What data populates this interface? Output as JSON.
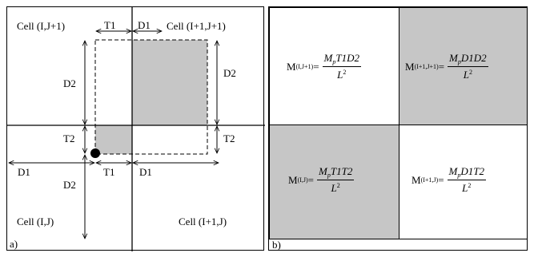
{
  "panel_a": {
    "tag": "a)",
    "cells": {
      "top_left": "Cell (I,J+1)",
      "top_right": "Cell (I+1,J+1)",
      "bottom_left": "Cell (I,J)",
      "bottom_right": "Cell (I+1,J)"
    },
    "dims": {
      "t1_top": "T1",
      "d1_top": "D1",
      "d2_left": "D2",
      "d2_right": "D2",
      "t2_left": "T2",
      "t2_right": "T2",
      "d1_left": "D1",
      "d2_bottom": "D2",
      "t1_bottom": "T1",
      "d1_bottom": "D1"
    },
    "colors": {
      "shade": "#c6c6c6"
    }
  },
  "panel_b": {
    "tag": "b)",
    "formulas": [
      {
        "m": "M",
        "sub": "(I,J+1)",
        "eq": "=",
        "num_a": "M",
        "num_sub": "p",
        "num_b": "T1D2",
        "den": "L",
        "den_sup": "2"
      },
      {
        "m": "M",
        "sub": "(I+1,J+1)",
        "eq": "=",
        "num_a": "M",
        "num_sub": "p",
        "num_b": "D1D2",
        "den": "L",
        "den_sup": "2"
      },
      {
        "m": "M",
        "sub": "(I,J)",
        "eq": "=",
        "num_a": "M",
        "num_sub": "p",
        "num_b": "T1T2",
        "den": "L",
        "den_sup": "2"
      },
      {
        "m": "M",
        "sub": "(I+1,J)",
        "eq": "=",
        "num_a": "M",
        "num_sub": "p",
        "num_b": "D1T2",
        "den": "L",
        "den_sup": "2"
      }
    ]
  }
}
